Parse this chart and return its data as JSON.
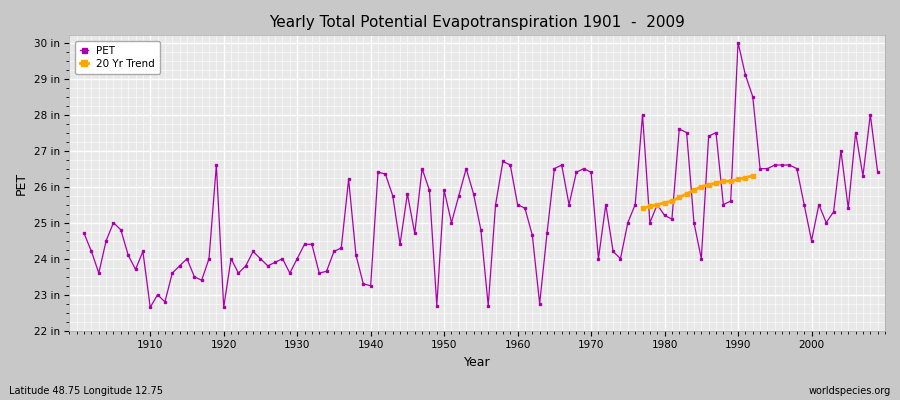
{
  "title": "Yearly Total Potential Evapotranspiration 1901  -  2009",
  "xlabel": "Year",
  "ylabel": "PET",
  "subtitle": "Latitude 48.75 Longitude 12.75",
  "watermark": "worldspecies.org",
  "pet_color": "#aa00aa",
  "trend_color": "#FFA500",
  "fig_bg_color": "#c8c8c8",
  "plot_bg_color": "#e8e8e8",
  "ylim": [
    22,
    30.2
  ],
  "ytick_labels": [
    "22 in",
    "23 in",
    "24 in",
    "25 in",
    "26 in",
    "27 in",
    "28 in",
    "29 in",
    "30 in"
  ],
  "ytick_values": [
    22,
    23,
    24,
    25,
    26,
    27,
    28,
    29,
    30
  ],
  "xlim": [
    1899,
    2010
  ],
  "xticks": [
    1910,
    1920,
    1930,
    1940,
    1950,
    1960,
    1970,
    1980,
    1990,
    2000
  ],
  "years": [
    1901,
    1902,
    1903,
    1904,
    1905,
    1906,
    1907,
    1908,
    1909,
    1910,
    1911,
    1912,
    1913,
    1914,
    1915,
    1916,
    1917,
    1918,
    1919,
    1920,
    1921,
    1922,
    1923,
    1924,
    1925,
    1926,
    1927,
    1928,
    1929,
    1930,
    1931,
    1932,
    1933,
    1934,
    1935,
    1936,
    1937,
    1938,
    1939,
    1940,
    1941,
    1942,
    1943,
    1944,
    1945,
    1946,
    1947,
    1948,
    1949,
    1950,
    1951,
    1952,
    1953,
    1954,
    1955,
    1956,
    1957,
    1958,
    1959,
    1960,
    1961,
    1962,
    1963,
    1964,
    1965,
    1966,
    1967,
    1968,
    1969,
    1970,
    1971,
    1972,
    1973,
    1974,
    1975,
    1976,
    1977,
    1978,
    1979,
    1980,
    1981,
    1982,
    1983,
    1984,
    1985,
    1986,
    1987,
    1988,
    1989,
    1990,
    1991,
    1992,
    1993,
    1994,
    1995,
    1996,
    1997,
    1998,
    1999,
    2000,
    2001,
    2002,
    2003,
    2004,
    2005,
    2006,
    2007,
    2008,
    2009
  ],
  "pet_values": [
    24.7,
    24.2,
    23.6,
    24.5,
    25.0,
    24.8,
    24.1,
    23.7,
    24.2,
    22.65,
    23.0,
    22.8,
    23.6,
    23.8,
    24.0,
    23.5,
    23.4,
    24.0,
    26.6,
    22.65,
    24.0,
    23.6,
    23.8,
    24.2,
    24.0,
    23.8,
    23.9,
    24.0,
    23.6,
    24.0,
    24.4,
    24.4,
    23.6,
    23.65,
    24.2,
    24.3,
    26.2,
    24.1,
    23.3,
    23.25,
    26.4,
    26.35,
    25.75,
    24.4,
    25.8,
    24.7,
    26.5,
    25.9,
    22.7,
    25.9,
    25.0,
    25.75,
    26.5,
    25.8,
    24.8,
    22.7,
    25.5,
    26.7,
    26.6,
    25.5,
    25.4,
    24.65,
    22.75,
    24.7,
    26.5,
    26.6,
    25.5,
    26.4,
    26.5,
    26.4,
    24.0,
    25.5,
    24.2,
    24.0,
    25.0,
    25.5,
    28.0,
    25.0,
    25.5,
    25.2,
    25.1,
    27.6,
    27.5,
    25.0,
    24.0,
    27.4,
    27.5,
    25.5,
    25.6,
    30.0,
    29.1,
    28.5,
    26.5,
    26.5,
    26.6,
    26.6,
    26.6,
    26.5,
    25.5,
    24.5,
    25.5,
    25.0,
    25.3,
    27.0,
    25.4,
    27.5,
    26.3,
    28.0,
    26.4
  ],
  "trend_years": [
    1977,
    1978,
    1979,
    1980,
    1981,
    1982,
    1983,
    1984,
    1985,
    1986,
    1987,
    1988,
    1989,
    1990,
    1991,
    1992
  ],
  "trend_values": [
    25.4,
    25.45,
    25.5,
    25.55,
    25.6,
    25.7,
    25.8,
    25.9,
    26.0,
    26.05,
    26.1,
    26.15,
    26.15,
    26.2,
    26.25,
    26.3
  ]
}
